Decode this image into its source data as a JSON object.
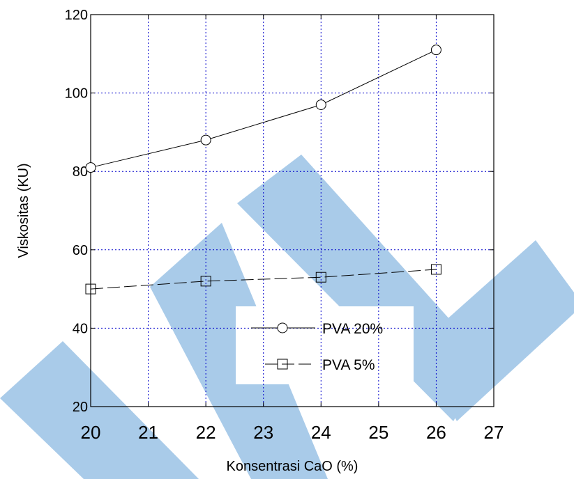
{
  "chart_data": {
    "type": "line",
    "title": "",
    "xlabel": "Konsentrasi CaO (%)",
    "ylabel": "Viskositas (KU)",
    "xlim": [
      20,
      27
    ],
    "ylim": [
      20,
      120
    ],
    "xticks": [
      20,
      21,
      22,
      23,
      24,
      25,
      26,
      27
    ],
    "yticks": [
      20,
      40,
      60,
      80,
      100,
      120
    ],
    "grid": true,
    "grid_color": "#0000cc",
    "legend_position": "lower-right",
    "series": [
      {
        "name": "PVA 20%",
        "marker": "circle",
        "line": "solid",
        "color": "#000000",
        "x": [
          20,
          22,
          24,
          26
        ],
        "y": [
          81,
          88,
          97,
          111
        ]
      },
      {
        "name": "PVA 5%",
        "marker": "square",
        "line": "dashed",
        "color": "#000000",
        "x": [
          20,
          22,
          24,
          26
        ],
        "y": [
          50,
          52,
          53,
          55
        ]
      }
    ]
  },
  "watermark": {
    "color": "#a9cbe9"
  }
}
